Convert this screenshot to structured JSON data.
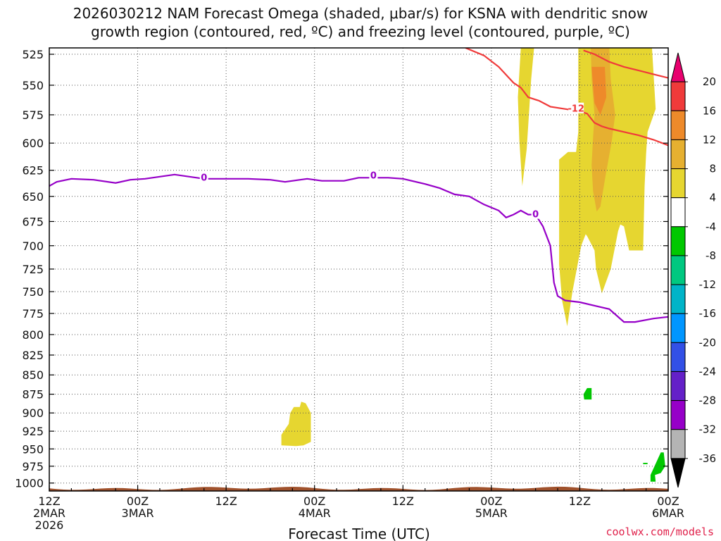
{
  "title_line1": "2026030212 NAM Forecast Omega (shaded, μbar/s) for KSNA with dendritic snow",
  "title_line2": "growth region (contoured, red, ºC) and freezing level (contoured, purple, ºC)",
  "xaxis_title": "Forecast Time (UTC)",
  "credit": "coolwx.com/models",
  "chart_data": {
    "type": "heatmap",
    "ylim": [
      520,
      1012
    ],
    "xlim_hours": [
      0,
      84
    ],
    "y_ticks": [
      525,
      550,
      575,
      600,
      625,
      650,
      675,
      700,
      725,
      750,
      775,
      800,
      825,
      850,
      875,
      900,
      925,
      950,
      975,
      1000
    ],
    "x_ticks": [
      {
        "hour": 0,
        "lines": [
          "12Z",
          "2MAR",
          "2026"
        ]
      },
      {
        "hour": 12,
        "lines": [
          "00Z",
          "3MAR"
        ]
      },
      {
        "hour": 24,
        "lines": [
          "12Z"
        ]
      },
      {
        "hour": 36,
        "lines": [
          "00Z",
          "4MAR"
        ]
      },
      {
        "hour": 48,
        "lines": [
          "12Z"
        ]
      },
      {
        "hour": 60,
        "lines": [
          "00Z",
          "5MAR"
        ]
      },
      {
        "hour": 72,
        "lines": [
          "12Z"
        ]
      },
      {
        "hour": 84,
        "lines": [
          "00Z",
          "6MAR"
        ]
      }
    ],
    "colorbar": {
      "labels": [
        "20",
        "16",
        "12",
        "8",
        "4",
        "-4",
        "-8",
        "-12",
        "-16",
        "-20",
        "-24",
        "-28",
        "-32",
        "-36"
      ],
      "colors": [
        "#e8006e",
        "#f03a3a",
        "#ee8a2a",
        "#e6b030",
        "#e6d630",
        "#ffffff",
        "#00c800",
        "#00c880",
        "#00b4c8",
        "#0096ff",
        "#3250e6",
        "#6420c8",
        "#9600c8",
        "#b4b4b4",
        "#000000"
      ]
    },
    "freezing_level": {
      "color": "#9600c8",
      "label": "0",
      "points": [
        [
          0,
          640
        ],
        [
          1,
          636
        ],
        [
          3,
          633
        ],
        [
          6,
          634
        ],
        [
          9,
          637
        ],
        [
          11,
          634
        ],
        [
          13,
          633
        ],
        [
          15,
          631
        ],
        [
          17,
          629
        ],
        [
          19,
          631
        ],
        [
          21,
          633
        ],
        [
          24,
          633
        ],
        [
          27,
          633
        ],
        [
          30,
          634
        ],
        [
          32,
          636
        ],
        [
          35,
          633
        ],
        [
          37,
          635
        ],
        [
          40,
          635
        ],
        [
          42,
          632
        ],
        [
          44,
          632
        ],
        [
          46,
          632
        ],
        [
          48,
          633
        ],
        [
          51,
          638
        ],
        [
          53,
          642
        ],
        [
          55,
          648
        ],
        [
          57,
          650
        ],
        [
          58,
          654
        ],
        [
          59,
          658
        ],
        [
          61,
          664
        ],
        [
          62,
          671
        ],
        [
          63,
          668
        ],
        [
          64,
          664
        ],
        [
          65,
          668
        ],
        [
          66,
          668
        ],
        [
          67,
          680
        ],
        [
          68,
          700
        ],
        [
          68.5,
          740
        ],
        [
          69,
          755
        ],
        [
          70,
          760
        ],
        [
          72,
          762
        ],
        [
          74,
          766
        ],
        [
          76,
          770
        ],
        [
          78,
          785
        ],
        [
          79.5,
          785
        ],
        [
          82,
          781
        ],
        [
          84,
          779
        ]
      ]
    },
    "dgz_contour": {
      "color": "#f03a3a",
      "label": "-12",
      "upper": [
        [
          56.5,
          520
        ],
        [
          59,
          526
        ],
        [
          61,
          535
        ],
        [
          63,
          548
        ],
        [
          64,
          552
        ],
        [
          65,
          560
        ],
        [
          66.5,
          563
        ],
        [
          68,
          568
        ],
        [
          70,
          570
        ],
        [
          72,
          572
        ],
        [
          73,
          574
        ],
        [
          74,
          582
        ],
        [
          75,
          585
        ],
        [
          76,
          587
        ],
        [
          78,
          590
        ],
        [
          80,
          593
        ],
        [
          82,
          597
        ],
        [
          84,
          602
        ]
      ],
      "lower": [
        [
          72.5,
          522
        ],
        [
          74,
          525
        ],
        [
          76,
          531
        ],
        [
          78,
          535
        ],
        [
          80,
          538
        ],
        [
          82,
          541
        ],
        [
          84,
          544
        ]
      ]
    },
    "omega_regions": [
      {
        "value": 4,
        "color": "#e6d630",
        "points": [
          [
            64,
            520
          ],
          [
            65.8,
            520
          ],
          [
            65.4,
            545
          ],
          [
            64.8,
            605
          ],
          [
            64.2,
            640
          ],
          [
            63.8,
            598
          ],
          [
            63.6,
            560
          ]
        ]
      },
      {
        "value": 4,
        "color": "#e6d630",
        "points": [
          [
            71.8,
            520
          ],
          [
            81.8,
            520
          ],
          [
            82.3,
            570
          ],
          [
            81.2,
            590
          ],
          [
            81,
            610
          ],
          [
            80.8,
            640
          ],
          [
            80.6,
            705
          ],
          [
            78.7,
            705
          ],
          [
            78,
            680
          ],
          [
            77.5,
            678
          ],
          [
            77.2,
            685
          ],
          [
            76.2,
            725
          ],
          [
            75,
            752
          ],
          [
            74.2,
            725
          ],
          [
            74,
            705
          ],
          [
            73,
            690
          ],
          [
            72.8,
            688
          ],
          [
            72.2,
            700
          ],
          [
            71,
            750
          ],
          [
            70.3,
            790
          ],
          [
            69.6,
            760
          ],
          [
            69.2,
            720
          ],
          [
            69.2,
            615
          ],
          [
            70.4,
            608
          ],
          [
            71.5,
            608
          ],
          [
            71.8,
            590
          ]
        ]
      },
      {
        "value": 8,
        "color": "#e6b030",
        "points": [
          [
            73.5,
            520
          ],
          [
            76,
            520
          ],
          [
            76.2,
            545
          ],
          [
            76.8,
            575
          ],
          [
            76.3,
            600
          ],
          [
            75.5,
            630
          ],
          [
            74.8,
            660
          ],
          [
            74.3,
            665
          ],
          [
            73.8,
            645
          ],
          [
            73.6,
            620
          ],
          [
            73.8,
            595
          ],
          [
            74,
            575
          ],
          [
            73.6,
            545
          ]
        ]
      },
      {
        "value": 12,
        "color": "#ee8a2a",
        "points": [
          [
            73.6,
            535
          ],
          [
            75.4,
            535
          ],
          [
            75.6,
            560
          ],
          [
            74.8,
            575
          ],
          [
            74,
            565
          ],
          [
            73.8,
            550
          ]
        ]
      },
      {
        "value": 4,
        "color": "#e6d630",
        "points": [
          [
            31.5,
            930
          ],
          [
            32.5,
            915
          ],
          [
            32.7,
            900
          ],
          [
            33.2,
            892
          ],
          [
            34,
            892
          ],
          [
            34.2,
            885
          ],
          [
            34.8,
            887
          ],
          [
            35.5,
            900
          ],
          [
            35.5,
            940
          ],
          [
            34.5,
            945
          ],
          [
            33.5,
            946
          ],
          [
            31.5,
            945
          ]
        ]
      },
      {
        "value": -4,
        "color": "#00c800",
        "points": [
          [
            73,
            867
          ],
          [
            73.6,
            867
          ],
          [
            73.6,
            882
          ],
          [
            72.6,
            882
          ],
          [
            72.5,
            875
          ]
        ]
      },
      {
        "value": -4,
        "color": "#00c800",
        "points": [
          [
            83,
            955
          ],
          [
            83.4,
            955
          ],
          [
            83.6,
            975
          ],
          [
            83,
            985
          ],
          [
            82.2,
            988
          ],
          [
            82.3,
            998
          ],
          [
            81.6,
            998
          ],
          [
            81.6,
            988
          ]
        ]
      },
      {
        "value": -4,
        "color": "#00c800",
        "points": [
          [
            80.6,
            970
          ],
          [
            81.2,
            970
          ],
          [
            81.2,
            972
          ],
          [
            80.6,
            972
          ]
        ]
      }
    ],
    "terrain": {
      "color": "#a0522d",
      "pressure_hpa": 1008
    }
  }
}
